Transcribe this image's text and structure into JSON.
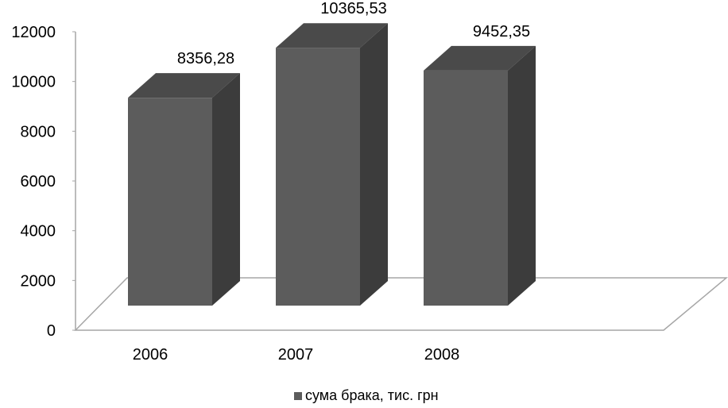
{
  "chart_data": {
    "type": "bar",
    "categories": [
      "2006",
      "2007",
      "2008"
    ],
    "series": [
      {
        "name": "сума брака, тис. грн",
        "values": [
          8356.28,
          10365.53,
          9452.35
        ],
        "labels": [
          "8356,28",
          "10365,53",
          "9452,35"
        ]
      }
    ],
    "y_ticks": [
      "0",
      "2000",
      "4000",
      "6000",
      "8000",
      "10000",
      "12000"
    ],
    "ylim": [
      0,
      12000
    ],
    "grid": false,
    "legend_position": "bottom",
    "style_3d": true,
    "colors": {
      "bar_front": "#5c5c5c",
      "bar_top": "#4a4a4a",
      "bar_side": "#3c3c3c",
      "floor": "#ffffff",
      "floor_stroke": "#a6a6a6",
      "legend_marker": "#5c5c5c"
    }
  }
}
